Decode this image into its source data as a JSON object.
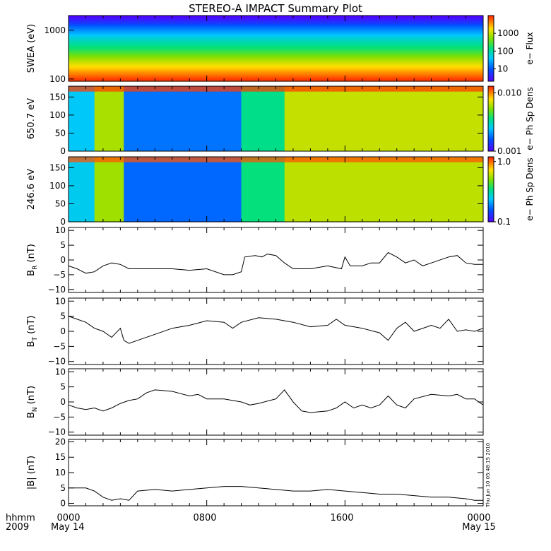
{
  "title": "STEREO-A IMPACT Summary Plot",
  "stamp": "Thu Jun 10 05:48:15 2010",
  "xaxis": {
    "unit_label": "hhmm",
    "year_label": "2009",
    "ticks": [
      "0000",
      "0800",
      "1600",
      "0000"
    ],
    "dates": [
      "May 14",
      "May 15"
    ]
  },
  "chart_data": [
    {
      "type": "heatmap",
      "ylabel": "SWEA (eV)",
      "yscale": "log",
      "ylim": [
        90,
        2000
      ],
      "yticks": [
        "1000",
        "100"
      ],
      "colorbar": {
        "label": "e− Flux",
        "scale": "log",
        "ticks": [
          "1000",
          "100",
          "10"
        ],
        "range": [
          2,
          10000
        ]
      },
      "hours": [
        0,
        24
      ],
      "profile": [
        {
          "energy": 100,
          "value": 8000
        },
        {
          "energy": 150,
          "value": 3000
        },
        {
          "energy": 250,
          "value": 800
        },
        {
          "energy": 400,
          "value": 200
        },
        {
          "energy": 700,
          "value": 60
        },
        {
          "energy": 1200,
          "value": 12
        },
        {
          "energy": 1600,
          "value": 4
        },
        {
          "energy": 2000,
          "value": 2
        }
      ]
    },
    {
      "type": "heatmap",
      "ylabel": "650.7 eV",
      "ylim": [
        0,
        180
      ],
      "yticks": [
        "150",
        "100",
        "50",
        "0"
      ],
      "colorbar": {
        "label": "e− Ph Sp Dens",
        "scale": "log",
        "ticks": [
          "0.010",
          "0.001"
        ],
        "range": [
          0.001,
          0.013
        ]
      },
      "segments": [
        {
          "start": 0.0,
          "end": 1.5,
          "value": 0.0025
        },
        {
          "start": 1.5,
          "end": 3.2,
          "value": 0.006
        },
        {
          "start": 3.2,
          "end": 10.0,
          "value": 0.0018
        },
        {
          "start": 10.0,
          "end": 12.5,
          "value": 0.0035
        },
        {
          "start": 12.5,
          "end": 24.0,
          "value": 0.0065
        }
      ],
      "pitch_edge_value": 0.012
    },
    {
      "type": "heatmap",
      "ylabel": "246.6 eV",
      "ylim": [
        0,
        180
      ],
      "yticks": [
        "150",
        "100",
        "50",
        "0"
      ],
      "colorbar": {
        "label": "e− Ph Sp Dens",
        "scale": "log",
        "ticks": [
          "1.0",
          "0.1"
        ],
        "range": [
          0.1,
          1.2
        ]
      },
      "segments": [
        {
          "start": 0.0,
          "end": 1.5,
          "value": 0.25
        },
        {
          "start": 1.5,
          "end": 3.2,
          "value": 0.55
        },
        {
          "start": 3.2,
          "end": 10.0,
          "value": 0.17
        },
        {
          "start": 10.0,
          "end": 12.5,
          "value": 0.35
        },
        {
          "start": 12.5,
          "end": 24.0,
          "value": 0.6
        }
      ],
      "pitch_edge_value": 1.05
    },
    {
      "type": "line",
      "ylabel": "B",
      "ylabel_sub": "R",
      "ylabel_unit": "(nT)",
      "ylim": [
        -11,
        11
      ],
      "yticks": [
        "10",
        "5",
        "0",
        "−5",
        "−10"
      ],
      "points": [
        [
          0,
          -2
        ],
        [
          0.5,
          -3
        ],
        [
          1,
          -4.5
        ],
        [
          1.5,
          -4
        ],
        [
          2,
          -2
        ],
        [
          2.5,
          -1
        ],
        [
          3,
          -1.5
        ],
        [
          3.5,
          -3
        ],
        [
          4,
          -3
        ],
        [
          5,
          -3
        ],
        [
          6,
          -3
        ],
        [
          7,
          -3.5
        ],
        [
          8,
          -3
        ],
        [
          9,
          -5
        ],
        [
          9.5,
          -5
        ],
        [
          10,
          -4
        ],
        [
          10.2,
          1
        ],
        [
          10.8,
          1.5
        ],
        [
          11.2,
          1
        ],
        [
          11.5,
          2
        ],
        [
          12,
          1.5
        ],
        [
          12.5,
          -1
        ],
        [
          13,
          -3
        ],
        [
          14,
          -3
        ],
        [
          15,
          -2
        ],
        [
          15.8,
          -3
        ],
        [
          16,
          1
        ],
        [
          16.3,
          -2
        ],
        [
          17,
          -2
        ],
        [
          17.5,
          -1
        ],
        [
          18,
          -1
        ],
        [
          18.5,
          2.5
        ],
        [
          19,
          1
        ],
        [
          19.5,
          -1
        ],
        [
          20,
          0
        ],
        [
          20.5,
          -2
        ],
        [
          21,
          -1
        ],
        [
          22,
          1
        ],
        [
          22.5,
          1.5
        ],
        [
          23,
          -1
        ],
        [
          23.5,
          -1.5
        ],
        [
          24,
          -1.5
        ]
      ]
    },
    {
      "type": "line",
      "ylabel": "B",
      "ylabel_sub": "T",
      "ylabel_unit": "(nT)",
      "ylim": [
        -11,
        11
      ],
      "yticks": [
        "10",
        "5",
        "0",
        "−5",
        "−10"
      ],
      "points": [
        [
          0,
          5
        ],
        [
          0.5,
          4
        ],
        [
          1,
          3
        ],
        [
          1.5,
          1
        ],
        [
          2,
          0
        ],
        [
          2.5,
          -2
        ],
        [
          3,
          1
        ],
        [
          3.2,
          -3
        ],
        [
          3.5,
          -4
        ],
        [
          4,
          -3
        ],
        [
          5,
          -1
        ],
        [
          6,
          1
        ],
        [
          7,
          2
        ],
        [
          8,
          3.5
        ],
        [
          9,
          3
        ],
        [
          9.5,
          1
        ],
        [
          10,
          3
        ],
        [
          11,
          4.5
        ],
        [
          12,
          4
        ],
        [
          13,
          3
        ],
        [
          14,
          1.5
        ],
        [
          15,
          2
        ],
        [
          15.5,
          4
        ],
        [
          16,
          2
        ],
        [
          17,
          1
        ],
        [
          18,
          -0.5
        ],
        [
          18.5,
          -3
        ],
        [
          19,
          1
        ],
        [
          19.5,
          3
        ],
        [
          20,
          0
        ],
        [
          21,
          2
        ],
        [
          21.5,
          1
        ],
        [
          22,
          4
        ],
        [
          22.5,
          0
        ],
        [
          23,
          0.5
        ],
        [
          23.5,
          0
        ],
        [
          24,
          1
        ]
      ]
    },
    {
      "type": "line",
      "ylabel": "B",
      "ylabel_sub": "N",
      "ylabel_unit": "(nT)",
      "ylim": [
        -11,
        11
      ],
      "yticks": [
        "10",
        "5",
        "0",
        "−5",
        "−10"
      ],
      "points": [
        [
          0,
          -1
        ],
        [
          0.5,
          -2
        ],
        [
          1,
          -2.5
        ],
        [
          1.5,
          -2
        ],
        [
          2,
          -3
        ],
        [
          2.5,
          -2
        ],
        [
          3,
          -0.5
        ],
        [
          3.5,
          0.5
        ],
        [
          4,
          1
        ],
        [
          4.5,
          3
        ],
        [
          5,
          4
        ],
        [
          6,
          3.5
        ],
        [
          7,
          2
        ],
        [
          7.5,
          2.5
        ],
        [
          8,
          1
        ],
        [
          9,
          1
        ],
        [
          10,
          0
        ],
        [
          10.5,
          -1
        ],
        [
          11,
          -0.5
        ],
        [
          12,
          1
        ],
        [
          12.5,
          4
        ],
        [
          13,
          0
        ],
        [
          13.5,
          -3
        ],
        [
          14,
          -3.5
        ],
        [
          15,
          -3
        ],
        [
          15.5,
          -2
        ],
        [
          16,
          0
        ],
        [
          16.5,
          -2
        ],
        [
          17,
          -1
        ],
        [
          17.5,
          -2
        ],
        [
          18,
          -1
        ],
        [
          18.5,
          2
        ],
        [
          19,
          -1
        ],
        [
          19.5,
          -2
        ],
        [
          20,
          1
        ],
        [
          21,
          2.5
        ],
        [
          22,
          2
        ],
        [
          22.5,
          2.5
        ],
        [
          23,
          1
        ],
        [
          23.5,
          1
        ],
        [
          24,
          -1
        ]
      ]
    },
    {
      "type": "line",
      "ylabel": "|B|",
      "ylabel_unit": "(nT)",
      "ylim": [
        -0.8,
        20.8
      ],
      "yticks": [
        "20",
        "15",
        "10",
        "5",
        "0"
      ],
      "points": [
        [
          0,
          5
        ],
        [
          0.5,
          5
        ],
        [
          1,
          5
        ],
        [
          1.5,
          4
        ],
        [
          2,
          2
        ],
        [
          2.5,
          1
        ],
        [
          3,
          1.5
        ],
        [
          3.5,
          1
        ],
        [
          4,
          4
        ],
        [
          5,
          4.5
        ],
        [
          6,
          4
        ],
        [
          7,
          4.5
        ],
        [
          8,
          5
        ],
        [
          9,
          5.5
        ],
        [
          10,
          5.5
        ],
        [
          11,
          5
        ],
        [
          12,
          4.5
        ],
        [
          13,
          4
        ],
        [
          14,
          4
        ],
        [
          15,
          4.5
        ],
        [
          16,
          4
        ],
        [
          17,
          3.5
        ],
        [
          18,
          3
        ],
        [
          19,
          3
        ],
        [
          20,
          2.5
        ],
        [
          21,
          2
        ],
        [
          22,
          2
        ],
        [
          23,
          1.5
        ],
        [
          23.5,
          1
        ],
        [
          24,
          1
        ]
      ]
    }
  ]
}
